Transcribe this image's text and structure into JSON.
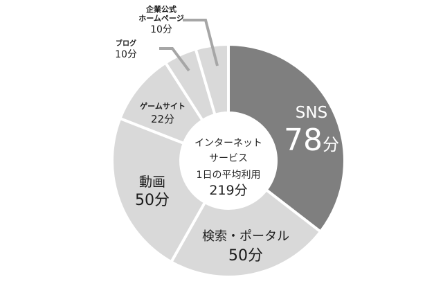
{
  "chart_data": {
    "type": "pie",
    "subtype": "donut",
    "title": "インターネットサービス 1日の平均利用 219分",
    "center_label": {
      "line1": "インターネット",
      "line2": "サービス",
      "line3": "1日の平均利用",
      "total": "219分"
    },
    "unit": "分",
    "total": 219,
    "categories": [
      "SNS",
      "検索・ポータル",
      "動画",
      "ゲームサイト",
      "ブログ",
      "企業公式ホームページ"
    ],
    "values": [
      78,
      50,
      50,
      22,
      10,
      10
    ],
    "colors": [
      "#7f7f7f",
      "#d9d9d9",
      "#d9d9d9",
      "#d9d9d9",
      "#d9d9d9",
      "#d9d9d9"
    ],
    "start_angle": "12 o'clock, clockwise",
    "legend": "none (direct labels)"
  },
  "labels": {
    "sns": {
      "name": "SNS",
      "value": "78",
      "unit": "分"
    },
    "search": {
      "name": "検索・ポータル",
      "value": "50分"
    },
    "video": {
      "name": "動画",
      "value": "50分"
    },
    "game": {
      "name": "ゲームサイト",
      "value": "22分"
    },
    "blog": {
      "name": "ブログ",
      "value": "10分"
    },
    "corporate": {
      "name1": "企業公式",
      "name2": "ホームページ",
      "value": "10分"
    }
  },
  "center": {
    "line1": "インターネット",
    "line2": "サービス",
    "line3": "1日の平均利用",
    "total": "219分"
  }
}
